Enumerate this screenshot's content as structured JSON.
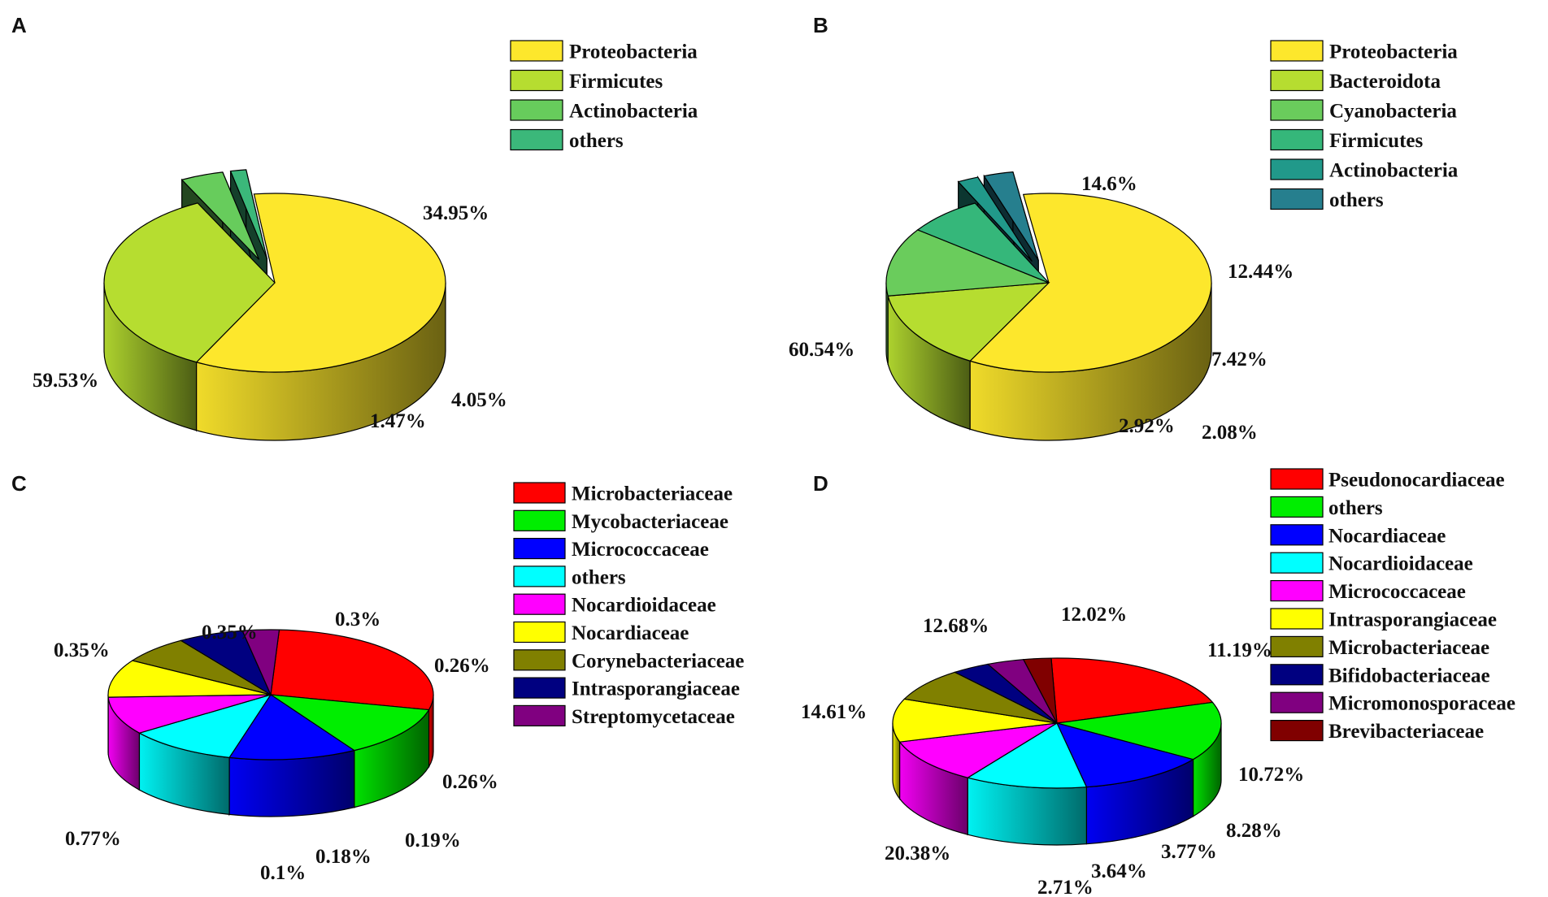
{
  "chart_data": [
    {
      "panel": "A",
      "type": "pie",
      "slices": [
        {
          "label": "Proteobacteria",
          "percent_label": "59.53%",
          "value": 59.53,
          "color": "#fde72c"
        },
        {
          "label": "Firmicutes",
          "percent_label": "34.95%",
          "value": 34.95,
          "color": "#b6dd30"
        },
        {
          "label": "Actinobacteria",
          "percent_label": "4.05%",
          "value": 4.05,
          "color": "#67cc5c"
        },
        {
          "label": "others",
          "percent_label": "1.47%",
          "value": 1.47,
          "color": "#3bb87a"
        }
      ],
      "legend_position": "top-right"
    },
    {
      "panel": "B",
      "type": "pie",
      "slices": [
        {
          "label": "Proteobacteria",
          "percent_label": "60.54%",
          "value": 60.54,
          "color": "#fde72c"
        },
        {
          "label": "Bacteroidota",
          "percent_label": "14.6%",
          "value": 14.6,
          "color": "#b6dd30"
        },
        {
          "label": "Cyanobacteria",
          "percent_label": "12.44%",
          "value": 12.44,
          "color": "#6acc5c"
        },
        {
          "label": "Firmicutes",
          "percent_label": "7.42%",
          "value": 7.42,
          "color": "#35b77a"
        },
        {
          "label": "Actinobacteria",
          "percent_label": "2.08%",
          "value": 2.08,
          "color": "#21998a"
        },
        {
          "label": "others",
          "percent_label": "2.92%",
          "value": 2.92,
          "color": "#267f8e"
        }
      ],
      "legend_position": "top-right"
    },
    {
      "panel": "C",
      "type": "pie",
      "slices": [
        {
          "label": "Microbacteriaceae",
          "percent_label": "0.77%",
          "value": 0.77,
          "color": "#ff0000"
        },
        {
          "label": "Mycobacteriaceae",
          "percent_label": "0.35%",
          "value": 0.35,
          "color": "#00ee00"
        },
        {
          "label": "Micrococcaceae",
          "percent_label": "0.35%",
          "value": 0.35,
          "color": "#0000ff"
        },
        {
          "label": "others",
          "percent_label": "0.3%",
          "value": 0.3,
          "color": "#00ffff"
        },
        {
          "label": "Nocardioidaceae",
          "percent_label": "0.26%",
          "value": 0.26,
          "color": "#ff00ff"
        },
        {
          "label": "Nocardiaceae",
          "percent_label": "0.26%",
          "value": 0.26,
          "color": "#ffff00"
        },
        {
          "label": "Corynebacteriaceae",
          "percent_label": "0.19%",
          "value": 0.19,
          "color": "#808000"
        },
        {
          "label": "Intrasporangiaceae",
          "percent_label": "0.18%",
          "value": 0.18,
          "color": "#000080"
        },
        {
          "label": "Streptomycetaceae",
          "percent_label": "0.1%",
          "value": 0.1,
          "color": "#800080"
        }
      ],
      "legend_position": "top-right"
    },
    {
      "panel": "D",
      "type": "pie",
      "slices": [
        {
          "label": "Pseudonocardiaceae",
          "percent_label": "20.38%",
          "value": 20.38,
          "color": "#ff0000"
        },
        {
          "label": "others",
          "percent_label": "14.61%",
          "value": 14.61,
          "color": "#00ee00"
        },
        {
          "label": "Nocardiaceae",
          "percent_label": "12.68%",
          "value": 12.68,
          "color": "#0000ff"
        },
        {
          "label": "Nocardioidaceae",
          "percent_label": "12.02%",
          "value": 12.02,
          "color": "#00ffff"
        },
        {
          "label": "Micrococcaceae",
          "percent_label": "11.19%",
          "value": 11.19,
          "color": "#ff00ff"
        },
        {
          "label": "Intrasporangiaceae",
          "percent_label": "10.72%",
          "value": 10.72,
          "color": "#ffff00"
        },
        {
          "label": "Microbacteriaceae",
          "percent_label": "8.28%",
          "value": 8.28,
          "color": "#808000"
        },
        {
          "label": "Bifidobacteriaceae",
          "percent_label": "3.77%",
          "value": 3.77,
          "color": "#000080"
        },
        {
          "label": "Micromonosporaceae",
          "percent_label": "3.64%",
          "value": 3.64,
          "color": "#800080"
        },
        {
          "label": "Brevibacteriaceae",
          "percent_label": "2.71%",
          "value": 2.71,
          "color": "#800000"
        }
      ],
      "legend_position": "top-right"
    }
  ]
}
